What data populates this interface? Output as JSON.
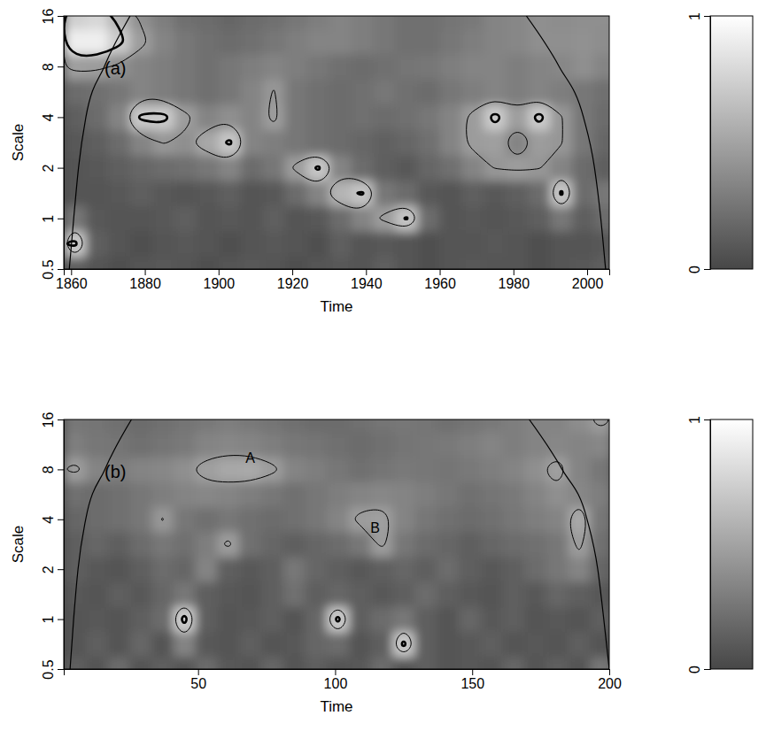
{
  "chart_data": [
    {
      "type": "heatmap",
      "panel_label": "(a)",
      "x_label": "Time",
      "y_label": "Scale",
      "xlim": [
        1858,
        2006
      ],
      "xticks": [
        1860,
        1880,
        1900,
        1920,
        1940,
        1960,
        1980,
        2000
      ],
      "ylim": [
        0.5,
        16
      ],
      "yticks": [
        0.5,
        1,
        2,
        4,
        8,
        16
      ],
      "log": "y",
      "x": [
        1861,
        1867,
        1873,
        1879,
        1885,
        1891,
        1897,
        1903,
        1909,
        1915,
        1921,
        1927,
        1933,
        1939,
        1945,
        1951,
        1957,
        1963,
        1969,
        1975,
        1981,
        1987,
        1993,
        1999,
        2005
      ],
      "y": [
        0.5,
        0.707,
        1,
        1.414,
        2,
        2.828,
        4,
        5.657,
        8,
        11.31,
        16
      ],
      "z": [
        [
          0.13,
          0.07,
          0.05,
          0.07,
          0.09,
          0.07,
          0.05,
          0.07,
          0.09,
          0.07,
          0.05,
          0.07,
          0.09,
          0.07,
          0.13,
          0.07,
          0.05,
          0.07,
          0.09,
          0.07,
          0.07,
          0.05,
          0.07,
          0.09,
          0.13
        ],
        [
          0.72,
          0.13,
          0.07,
          0.05,
          0.07,
          0.09,
          0.07,
          0.05,
          0.07,
          0.1,
          0.07,
          0.05,
          0.13,
          0.07,
          0.09,
          0.07,
          0.05,
          0.07,
          0.07,
          0.09,
          0.07,
          0.05,
          0.07,
          0.07,
          0.1
        ],
        [
          0.26,
          0.09,
          0.07,
          0.07,
          0.1,
          0.13,
          0.07,
          0.09,
          0.07,
          0.13,
          0.07,
          0.09,
          0.2,
          0.33,
          0.46,
          0.68,
          0.2,
          0.07,
          0.09,
          0.07,
          0.1,
          0.13,
          0.26,
          0.13,
          0.2
        ],
        [
          0.07,
          0.07,
          0.09,
          0.13,
          0.1,
          0.07,
          0.09,
          0.13,
          0.07,
          0.1,
          0.2,
          0.33,
          0.59,
          0.68,
          0.26,
          0.2,
          0.09,
          0.07,
          0.13,
          0.1,
          0.13,
          0.2,
          0.69,
          0.2,
          0.26
        ],
        [
          0.07,
          0.09,
          0.13,
          0.17,
          0.2,
          0.22,
          0.26,
          0.33,
          0.2,
          0.26,
          0.46,
          0.69,
          0.33,
          0.2,
          0.13,
          0.1,
          0.17,
          0.22,
          0.33,
          0.43,
          0.46,
          0.43,
          0.33,
          0.2,
          0.13
        ],
        [
          0.09,
          0.13,
          0.2,
          0.33,
          0.43,
          0.39,
          0.52,
          0.69,
          0.33,
          0.3,
          0.26,
          0.22,
          0.2,
          0.17,
          0.14,
          0.17,
          0.22,
          0.33,
          0.46,
          0.48,
          0.33,
          0.46,
          0.43,
          0.26,
          0.17
        ],
        [
          0.13,
          0.2,
          0.33,
          0.7,
          0.72,
          0.46,
          0.33,
          0.39,
          0.33,
          0.46,
          0.26,
          0.22,
          0.2,
          0.22,
          0.2,
          0.22,
          0.26,
          0.33,
          0.46,
          0.72,
          0.48,
          0.72,
          0.43,
          0.26,
          0.2
        ],
        [
          0.2,
          0.22,
          0.26,
          0.33,
          0.3,
          0.26,
          0.22,
          0.26,
          0.33,
          0.43,
          0.26,
          0.22,
          0.2,
          0.22,
          0.26,
          0.22,
          0.2,
          0.26,
          0.3,
          0.33,
          0.3,
          0.33,
          0.3,
          0.26,
          0.22
        ],
        [
          0.48,
          0.46,
          0.39,
          0.33,
          0.3,
          0.26,
          0.22,
          0.26,
          0.3,
          0.33,
          0.3,
          0.26,
          0.22,
          0.2,
          0.22,
          0.25,
          0.26,
          0.3,
          0.33,
          0.33,
          0.3,
          0.33,
          0.35,
          0.39,
          0.33
        ],
        [
          0.91,
          0.91,
          0.72,
          0.46,
          0.33,
          0.26,
          0.22,
          0.2,
          0.22,
          0.26,
          0.3,
          0.33,
          0.33,
          0.3,
          0.26,
          0.22,
          0.22,
          0.26,
          0.3,
          0.33,
          0.35,
          0.39,
          0.39,
          0.4,
          0.38
        ],
        [
          0.74,
          0.78,
          0.59,
          0.39,
          0.3,
          0.22,
          0.2,
          0.17,
          0.2,
          0.22,
          0.26,
          0.3,
          0.33,
          0.3,
          0.26,
          0.22,
          0.22,
          0.25,
          0.27,
          0.33,
          0.35,
          0.39,
          0.38,
          0.39,
          0.39
        ]
      ],
      "zlim": [
        0,
        1
      ],
      "zticks": [
        0,
        1
      ],
      "contour_levels": [
        0.42,
        0.65
      ],
      "coi": {
        "x": [
          1859.5,
          1860.7,
          1862,
          1864,
          1869,
          1876,
          null,
          1983.5,
          1992.4,
          1999,
          2002,
          2003.7,
          2005
        ],
        "y": [
          0.5,
          1,
          2,
          4,
          8,
          16,
          null,
          16,
          8,
          4,
          2,
          1,
          0.5
        ]
      },
      "annotations": []
    },
    {
      "type": "heatmap",
      "panel_label": "(b)",
      "x_label": "Time",
      "y_label": "Scale",
      "xlim": [
        1,
        200
      ],
      "xticks": [
        50,
        100,
        150,
        200
      ],
      "ylim": [
        0.5,
        16
      ],
      "yticks": [
        0.5,
        1,
        2,
        4,
        8,
        16
      ],
      "log": "y",
      "x": [
        5,
        13,
        21,
        29,
        37,
        45,
        53,
        61,
        69,
        77,
        85,
        93,
        101,
        109,
        117,
        125,
        133,
        141,
        149,
        157,
        165,
        173,
        181,
        189,
        197
      ],
      "y": [
        0.5,
        0.707,
        1,
        1.414,
        2,
        2.828,
        4,
        5.657,
        8,
        11.31,
        16
      ],
      "z": [
        [
          0.13,
          0.07,
          0.2,
          0.07,
          0.13,
          0.07,
          0.2,
          0.09,
          0.07,
          0.17,
          0.07,
          0.13,
          0.07,
          0.09,
          0.2,
          0.07,
          0.13,
          0.07,
          0.09,
          0.07,
          0.17,
          0.07,
          0.13,
          0.07,
          0.26
        ],
        [
          0.07,
          0.13,
          0.07,
          0.17,
          0.07,
          0.33,
          0.09,
          0.07,
          0.13,
          0.07,
          0.09,
          0.17,
          0.2,
          0.07,
          0.13,
          0.72,
          0.13,
          0.07,
          0.09,
          0.13,
          0.07,
          0.1,
          0.07,
          0.13,
          0.07
        ],
        [
          0.07,
          0.09,
          0.07,
          0.13,
          0.2,
          0.74,
          0.13,
          0.07,
          0.09,
          0.13,
          0.07,
          0.17,
          0.72,
          0.13,
          0.2,
          0.26,
          0.13,
          0.07,
          0.17,
          0.09,
          0.13,
          0.07,
          0.1,
          0.07,
          0.13
        ],
        [
          0.09,
          0.07,
          0.13,
          0.09,
          0.17,
          0.26,
          0.13,
          0.09,
          0.07,
          0.13,
          0.22,
          0.13,
          0.17,
          0.13,
          0.09,
          0.13,
          0.2,
          0.13,
          0.09,
          0.07,
          0.13,
          0.09,
          0.17,
          0.13,
          0.09
        ],
        [
          0.13,
          0.09,
          0.07,
          0.13,
          0.2,
          0.17,
          0.33,
          0.13,
          0.09,
          0.13,
          0.26,
          0.17,
          0.13,
          0.09,
          0.13,
          0.17,
          0.13,
          0.2,
          0.13,
          0.09,
          0.13,
          0.2,
          0.26,
          0.33,
          0.17
        ],
        [
          0.13,
          0.17,
          0.13,
          0.2,
          0.26,
          0.22,
          0.3,
          0.46,
          0.22,
          0.17,
          0.13,
          0.17,
          0.2,
          0.26,
          0.46,
          0.26,
          0.2,
          0.17,
          0.13,
          0.17,
          0.2,
          0.22,
          0.26,
          0.46,
          0.22
        ],
        [
          0.17,
          0.2,
          0.22,
          0.26,
          0.43,
          0.26,
          0.22,
          0.26,
          0.22,
          0.2,
          0.22,
          0.26,
          0.33,
          0.46,
          0.48,
          0.33,
          0.26,
          0.22,
          0.2,
          0.22,
          0.26,
          0.3,
          0.33,
          0.52,
          0.26
        ],
        [
          0.22,
          0.2,
          0.22,
          0.26,
          0.3,
          0.33,
          0.35,
          0.33,
          0.3,
          0.26,
          0.22,
          0.26,
          0.3,
          0.33,
          0.35,
          0.33,
          0.3,
          0.26,
          0.22,
          0.25,
          0.27,
          0.33,
          0.39,
          0.35,
          0.3
        ],
        [
          0.46,
          0.33,
          0.3,
          0.33,
          0.35,
          0.39,
          0.48,
          0.52,
          0.53,
          0.46,
          0.33,
          0.3,
          0.26,
          0.22,
          0.25,
          0.27,
          0.26,
          0.25,
          0.27,
          0.3,
          0.33,
          0.39,
          0.48,
          0.33,
          0.26
        ],
        [
          0.3,
          0.26,
          0.25,
          0.22,
          0.25,
          0.27,
          0.33,
          0.35,
          0.33,
          0.3,
          0.26,
          0.25,
          0.22,
          0.2,
          0.22,
          0.25,
          0.26,
          0.27,
          0.3,
          0.33,
          0.3,
          0.33,
          0.35,
          0.33,
          0.35
        ],
        [
          0.26,
          0.25,
          0.22,
          0.2,
          0.22,
          0.25,
          0.27,
          0.3,
          0.27,
          0.25,
          0.22,
          0.2,
          0.2,
          0.22,
          0.25,
          0.26,
          0.25,
          0.22,
          0.25,
          0.27,
          0.3,
          0.33,
          0.33,
          0.38,
          0.46
        ]
      ],
      "zlim": [
        0,
        1
      ],
      "zticks": [
        0,
        1
      ],
      "contour_levels": [
        0.42,
        0.65
      ],
      "coi": {
        "x": [
          3.3,
          4.6,
          6.2,
          9,
          16,
          25.7,
          null,
          170.8,
          182.8,
          191.9,
          195.8,
          198,
          200
        ],
        "y": [
          0.5,
          1,
          2,
          4,
          8,
          16,
          null,
          16,
          8,
          4,
          2,
          1,
          0.5
        ]
      },
      "annotations": [
        {
          "text": "A",
          "x": 69,
          "y": 9.2
        },
        {
          "text": "B",
          "x": 114.6,
          "y": 3.5
        }
      ]
    }
  ]
}
